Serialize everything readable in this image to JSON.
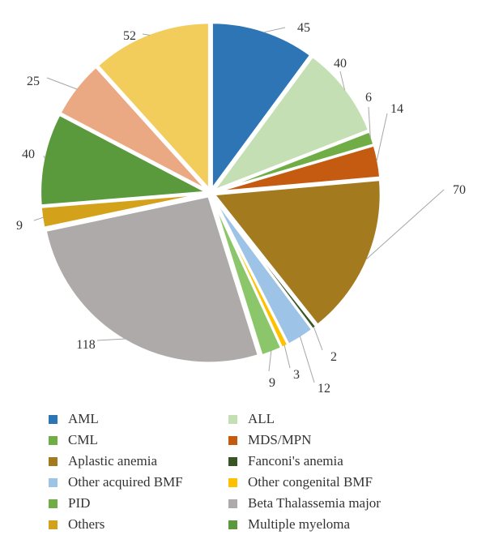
{
  "chart_data": {
    "type": "pie",
    "title": "",
    "slices": [
      {
        "label": "AML",
        "value": 45,
        "color": "#2e75b6"
      },
      {
        "label": "ALL",
        "value": 40,
        "color": "#c5dfb4"
      },
      {
        "label": "CML",
        "value": 6,
        "color": "#70ad47"
      },
      {
        "label": "MDS/MPN",
        "value": 14,
        "color": "#c55a11"
      },
      {
        "label": "Aplastic anemia",
        "value": 70,
        "color": "#a47a1f"
      },
      {
        "label": "Fanconi's anemia",
        "value": 2,
        "color": "#375623"
      },
      {
        "label": "Other acquired BMF",
        "value": 12,
        "color": "#9dc3e6"
      },
      {
        "label": "Other congenital BMF",
        "value": 3,
        "color": "#ffc000"
      },
      {
        "label": "PID",
        "value": 9,
        "color": "#8cc66a"
      },
      {
        "label": "Beta Thalassemia major",
        "value": 118,
        "color": "#aeaaaa"
      },
      {
        "label": "Others",
        "value": 9,
        "color": "#d4a21a"
      },
      {
        "label": "Multiple myeloma",
        "value": 40,
        "color": "#5a9a3c"
      },
      {
        "label": "",
        "value": 25,
        "color": "#eaa982"
      },
      {
        "label": "",
        "value": 52,
        "color": "#f2cd5c"
      }
    ],
    "legend": [
      {
        "label": "AML",
        "color": "#2e75b6"
      },
      {
        "label": "ALL",
        "color": "#c5dfb4"
      },
      {
        "label": "CML",
        "color": "#70ad47"
      },
      {
        "label": "MDS/MPN",
        "color": "#c55a11"
      },
      {
        "label": "Aplastic anemia",
        "color": "#a47a1f"
      },
      {
        "label": "Fanconi's anemia",
        "color": "#375623"
      },
      {
        "label": "Other acquired BMF",
        "color": "#9dc3e6"
      },
      {
        "label": "Other congenital BMF",
        "color": "#ffc000"
      },
      {
        "label": "PID",
        "color": "#70ad47"
      },
      {
        "label": "Beta Thalassemia major",
        "color": "#aeaaaa"
      },
      {
        "label": "Others",
        "color": "#d4a21a"
      },
      {
        "label": "Multiple myeloma",
        "color": "#5a9a3c"
      }
    ],
    "legend_position": "bottom"
  }
}
